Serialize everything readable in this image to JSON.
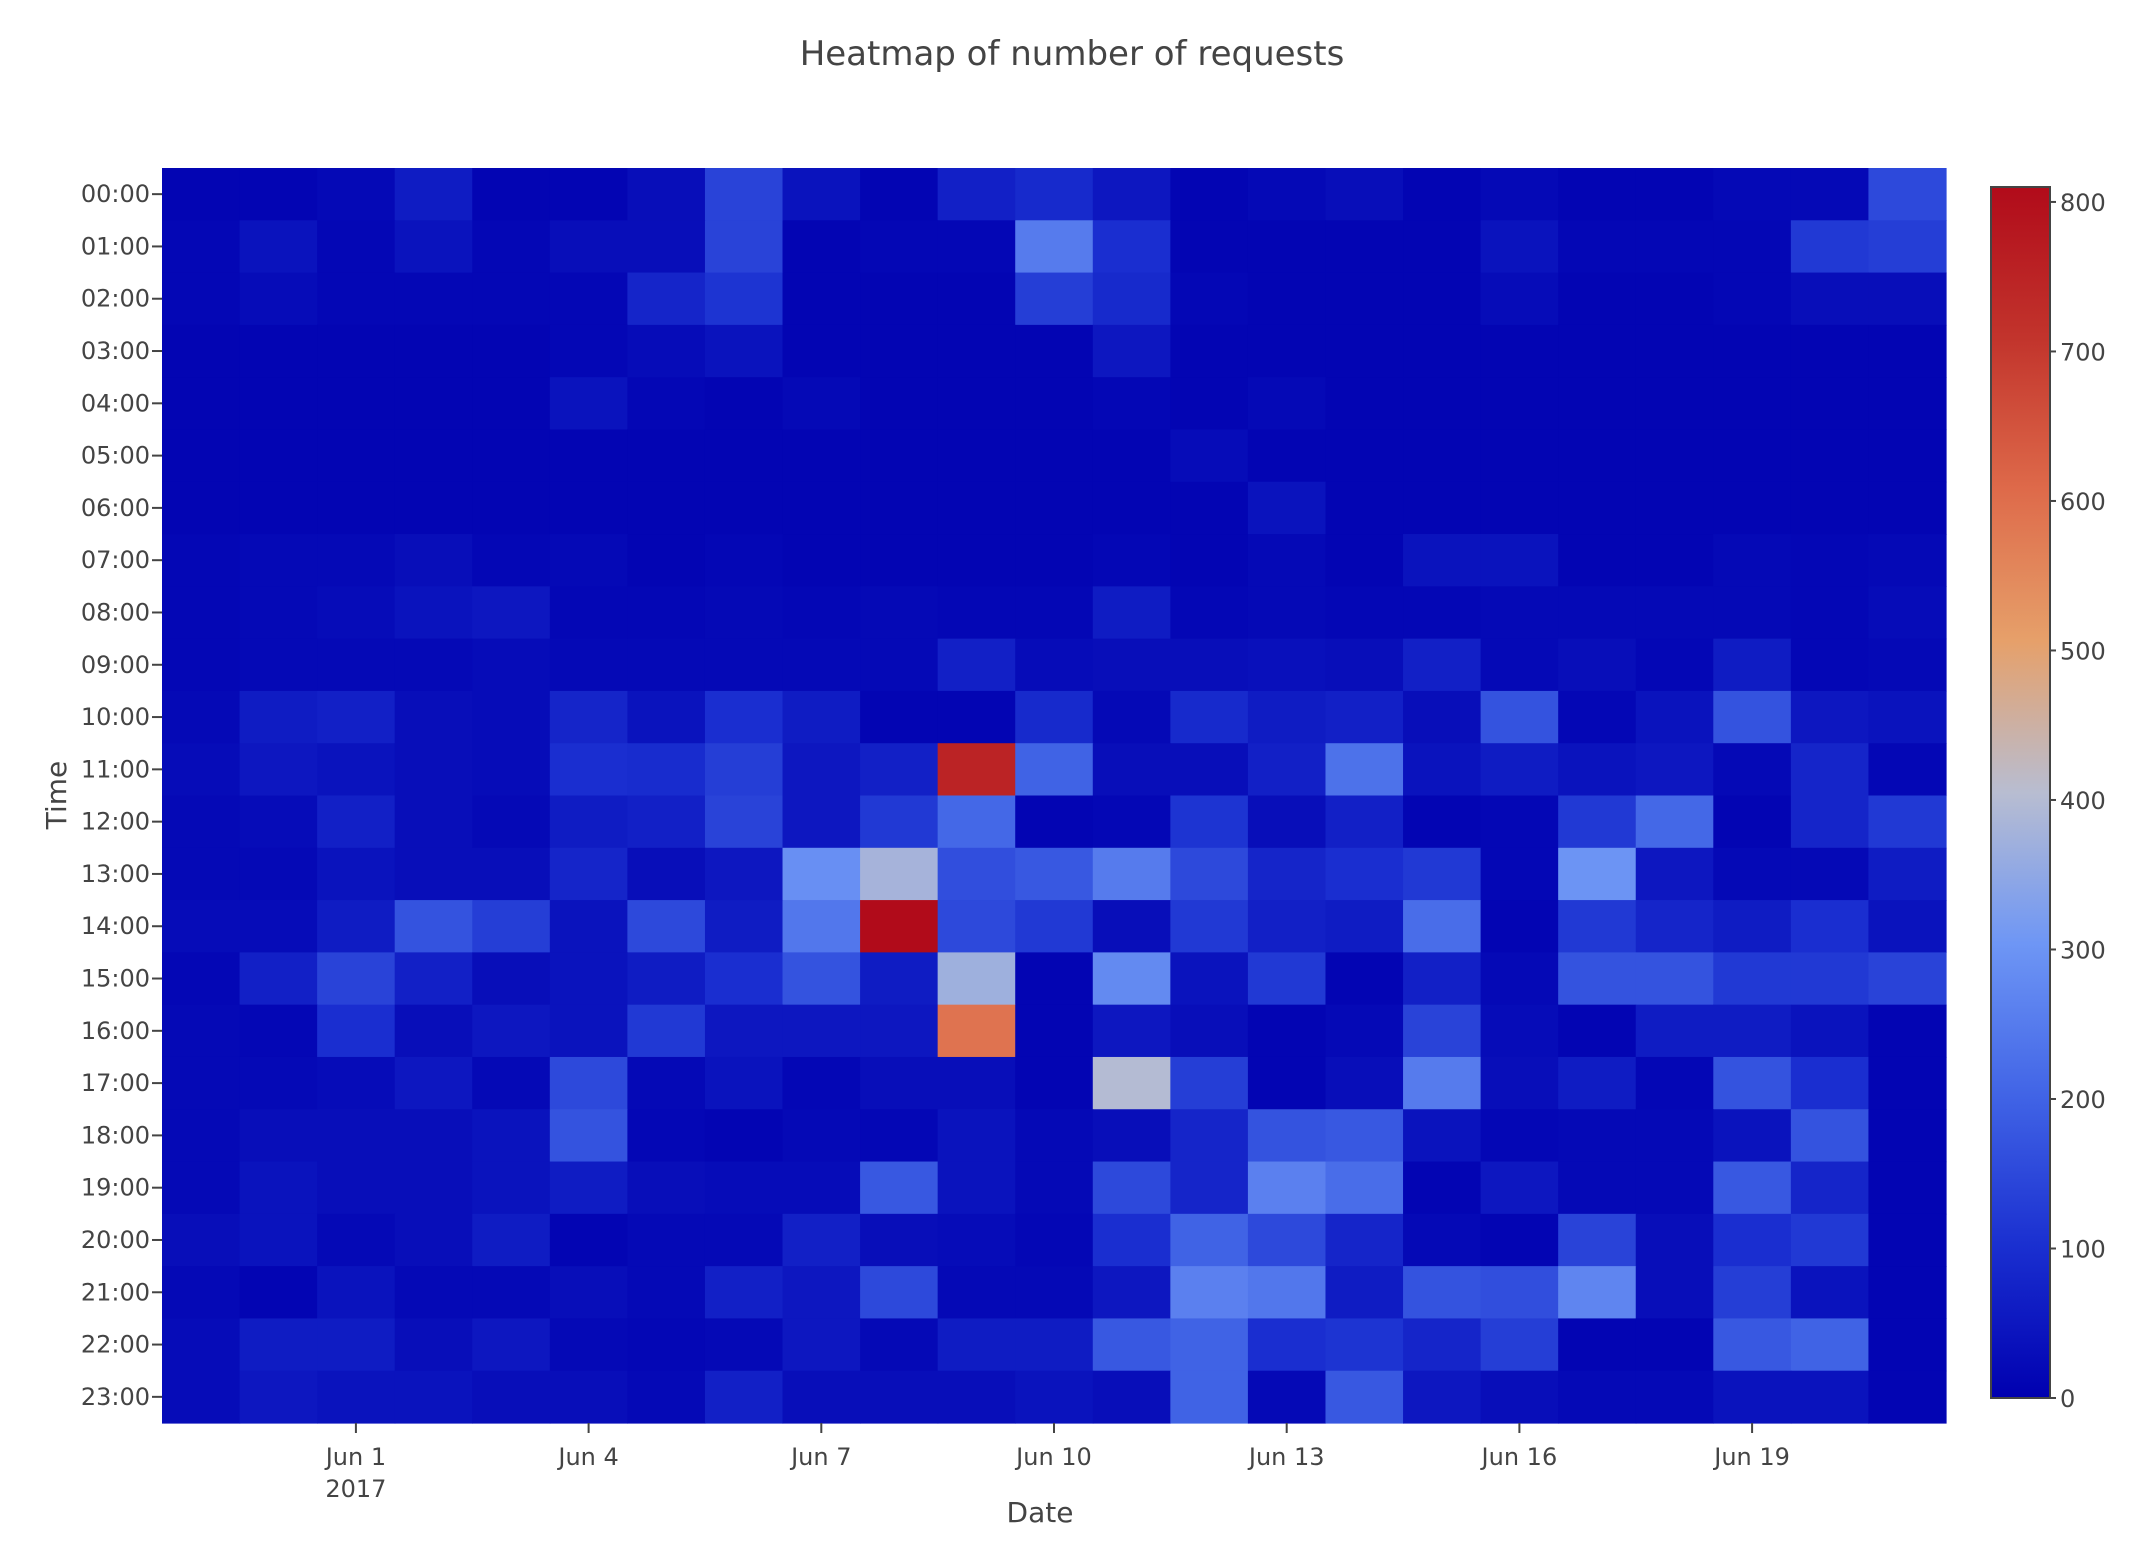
{
  "chart_data": {
    "type": "heatmap",
    "title": "Heatmap of number of requests",
    "xlabel": "Date",
    "ylabel": "Time",
    "x": [
      "2017-05-30",
      "2017-05-31",
      "2017-06-01",
      "2017-06-02",
      "2017-06-03",
      "2017-06-04",
      "2017-06-05",
      "2017-06-06",
      "2017-06-07",
      "2017-06-08",
      "2017-06-09",
      "2017-06-10",
      "2017-06-11",
      "2017-06-12",
      "2017-06-13",
      "2017-06-14",
      "2017-06-15",
      "2017-06-16",
      "2017-06-17",
      "2017-06-18",
      "2017-06-19",
      "2017-06-20",
      "2017-06-21"
    ],
    "x_ticks": [
      {
        "date": "2017-06-01",
        "label": "Jun 1",
        "sublabel": "2017"
      },
      {
        "date": "2017-06-04",
        "label": "Jun 4"
      },
      {
        "date": "2017-06-07",
        "label": "Jun 7"
      },
      {
        "date": "2017-06-10",
        "label": "Jun 10"
      },
      {
        "date": "2017-06-13",
        "label": "Jun 13"
      },
      {
        "date": "2017-06-16",
        "label": "Jun 16"
      },
      {
        "date": "2017-06-19",
        "label": "Jun 19"
      }
    ],
    "y": [
      "00:00",
      "01:00",
      "02:00",
      "03:00",
      "04:00",
      "05:00",
      "06:00",
      "07:00",
      "08:00",
      "09:00",
      "10:00",
      "11:00",
      "12:00",
      "13:00",
      "14:00",
      "15:00",
      "16:00",
      "17:00",
      "18:00",
      "19:00",
      "20:00",
      "21:00",
      "22:00",
      "23:00"
    ],
    "z": [
      [
        10,
        10,
        20,
        60,
        10,
        10,
        30,
        140,
        40,
        10,
        70,
        90,
        50,
        10,
        20,
        30,
        10,
        20,
        10,
        10,
        20,
        20,
        150
      ],
      [
        15,
        40,
        15,
        40,
        15,
        30,
        30,
        140,
        10,
        15,
        15,
        250,
        100,
        10,
        10,
        10,
        10,
        40,
        15,
        15,
        15,
        120,
        130
      ],
      [
        15,
        25,
        15,
        15,
        15,
        15,
        80,
        110,
        10,
        10,
        10,
        130,
        90,
        15,
        10,
        10,
        10,
        25,
        10,
        10,
        15,
        30,
        30
      ],
      [
        10,
        10,
        10,
        10,
        10,
        15,
        25,
        40,
        10,
        10,
        10,
        10,
        50,
        10,
        10,
        10,
        10,
        10,
        10,
        10,
        10,
        10,
        10
      ],
      [
        10,
        10,
        10,
        10,
        10,
        40,
        15,
        10,
        20,
        10,
        10,
        10,
        15,
        10,
        20,
        10,
        10,
        10,
        10,
        10,
        10,
        10,
        10
      ],
      [
        10,
        10,
        10,
        10,
        10,
        10,
        10,
        10,
        10,
        10,
        10,
        10,
        10,
        25,
        10,
        10,
        10,
        10,
        10,
        10,
        10,
        10,
        10
      ],
      [
        10,
        10,
        10,
        10,
        10,
        10,
        10,
        10,
        10,
        10,
        10,
        10,
        10,
        10,
        40,
        10,
        10,
        10,
        10,
        10,
        10,
        10,
        10
      ],
      [
        15,
        20,
        20,
        30,
        15,
        20,
        10,
        15,
        10,
        10,
        10,
        10,
        15,
        10,
        20,
        10,
        40,
        40,
        10,
        10,
        20,
        15,
        20
      ],
      [
        15,
        20,
        25,
        40,
        50,
        15,
        15,
        20,
        15,
        20,
        15,
        15,
        60,
        15,
        20,
        15,
        15,
        20,
        20,
        20,
        20,
        15,
        25
      ],
      [
        15,
        20,
        20,
        20,
        25,
        20,
        20,
        20,
        20,
        20,
        70,
        25,
        30,
        30,
        35,
        30,
        70,
        20,
        30,
        15,
        60,
        15,
        20
      ],
      [
        20,
        60,
        70,
        30,
        25,
        80,
        40,
        100,
        60,
        10,
        10,
        90,
        20,
        90,
        60,
        70,
        30,
        170,
        15,
        40,
        170,
        50,
        40
      ],
      [
        25,
        50,
        40,
        30,
        25,
        100,
        95,
        130,
        50,
        70,
        750,
        200,
        30,
        30,
        70,
        230,
        40,
        60,
        40,
        50,
        20,
        80,
        15
      ],
      [
        20,
        25,
        70,
        30,
        20,
        60,
        70,
        140,
        50,
        120,
        210,
        10,
        15,
        110,
        30,
        70,
        10,
        15,
        120,
        210,
        10,
        80,
        120
      ],
      [
        20,
        20,
        40,
        30,
        30,
        80,
        30,
        50,
        290,
        380,
        160,
        180,
        250,
        150,
        80,
        100,
        120,
        15,
        300,
        50,
        20,
        20,
        60
      ],
      [
        25,
        25,
        60,
        170,
        130,
        40,
        150,
        60,
        240,
        810,
        150,
        120,
        30,
        120,
        70,
        60,
        220,
        10,
        120,
        80,
        60,
        100,
        40
      ],
      [
        15,
        70,
        140,
        70,
        30,
        40,
        60,
        100,
        170,
        60,
        370,
        10,
        280,
        40,
        120,
        10,
        70,
        20,
        170,
        170,
        120,
        120,
        140
      ],
      [
        20,
        15,
        100,
        30,
        50,
        40,
        120,
        50,
        50,
        50,
        590,
        10,
        50,
        30,
        10,
        20,
        140,
        25,
        10,
        60,
        60,
        40,
        10
      ],
      [
        20,
        20,
        25,
        50,
        20,
        150,
        20,
        40,
        15,
        30,
        30,
        10,
        400,
        130,
        10,
        30,
        250,
        30,
        60,
        15,
        170,
        100,
        10
      ],
      [
        20,
        30,
        30,
        30,
        40,
        170,
        15,
        10,
        20,
        15,
        40,
        20,
        30,
        80,
        170,
        180,
        40,
        15,
        20,
        20,
        40,
        170,
        10
      ],
      [
        20,
        40,
        30,
        30,
        40,
        60,
        30,
        25,
        25,
        180,
        40,
        20,
        150,
        80,
        260,
        220,
        10,
        50,
        20,
        20,
        180,
        80,
        10
      ],
      [
        30,
        40,
        20,
        30,
        60,
        10,
        20,
        20,
        70,
        30,
        25,
        15,
        100,
        200,
        150,
        80,
        20,
        10,
        140,
        30,
        100,
        120,
        10
      ],
      [
        20,
        10,
        40,
        20,
        20,
        30,
        20,
        70,
        50,
        150,
        20,
        20,
        50,
        260,
        240,
        60,
        170,
        160,
        270,
        30,
        130,
        40,
        10
      ],
      [
        25,
        60,
        60,
        30,
        50,
        20,
        15,
        20,
        50,
        20,
        60,
        60,
        180,
        200,
        100,
        110,
        80,
        130,
        10,
        10,
        180,
        200,
        10
      ],
      [
        25,
        50,
        40,
        40,
        30,
        30,
        20,
        70,
        30,
        30,
        30,
        40,
        30,
        200,
        20,
        180,
        50,
        30,
        20,
        20,
        40,
        40,
        10
      ]
    ],
    "zlim": [
      0,
      810
    ],
    "colorbar": {
      "ticks": [
        0,
        100,
        200,
        300,
        400,
        500,
        600,
        700,
        800
      ],
      "colorscale": [
        [
          0.0,
          "#0508b8"
        ],
        [
          0.35,
          "#1910d8"
        ],
        [
          0.5,
          "#3c19f0"
        ],
        [
          0.6,
          "#6b1cfb"
        ],
        [
          0.7,
          "#981cfd"
        ],
        [
          0.8,
          "#c33dc2"
        ],
        [
          0.9,
          "#ea4d9c"
        ],
        [
          1.0,
          "#ffa028"
        ]
      ]
    },
    "colors": {
      "scale": [
        [
          0,
          "#0000b0"
        ],
        [
          0.125,
          "#1a2fd0"
        ],
        [
          0.25,
          "#4164e6"
        ],
        [
          0.375,
          "#6e96f5"
        ],
        [
          0.5,
          "#b8bdd1"
        ],
        [
          0.625,
          "#e6a06a"
        ],
        [
          0.75,
          "#de6a4a"
        ],
        [
          0.875,
          "#c2342c"
        ],
        [
          1.0,
          "#b10b1a"
        ]
      ],
      "text": "#444444",
      "tick": "#444444"
    },
    "grid": false
  }
}
